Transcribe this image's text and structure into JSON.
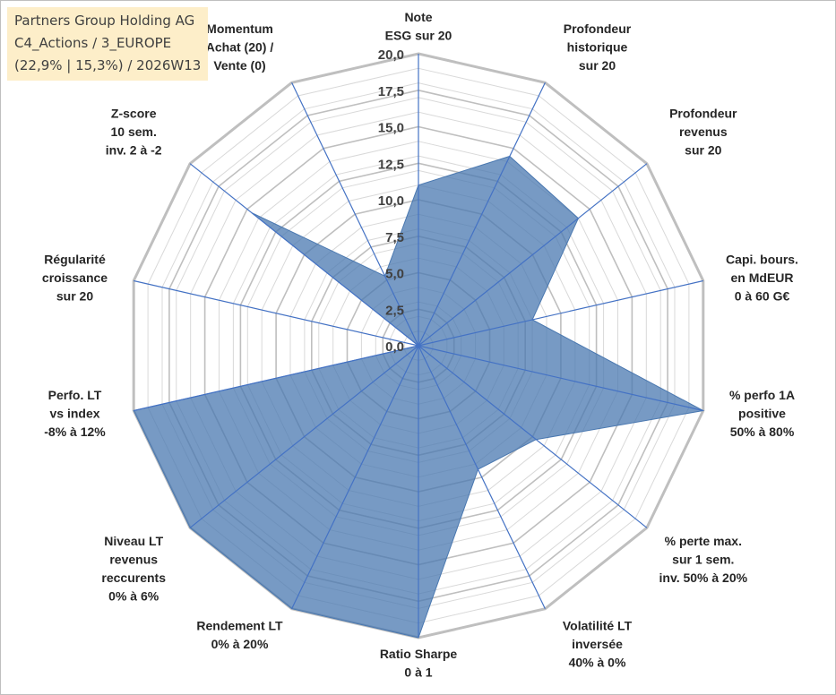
{
  "info": {
    "line1": "Partners Group Holding AG",
    "line2": "C4_Actions / 3_EUROPE",
    "line3": "(22,9% | 15,3%) / 2026W13"
  },
  "colors": {
    "fill": "#4a78b0",
    "spoke": "#4472c4",
    "grid_major": "#bfbfbf",
    "grid_minor": "#d9d9d9"
  },
  "chart_data": {
    "type": "radar",
    "rmax": 20,
    "tick_values": [
      0,
      2.5,
      5,
      7.5,
      10,
      12.5,
      15,
      17.5,
      20
    ],
    "tick_labels": [
      "0,0",
      "2,5",
      "5,0",
      "7,5",
      "10,0",
      "12,5",
      "15,0",
      "17,5",
      "20,0"
    ],
    "axes": [
      {
        "lines": [
          "Note",
          "ESG sur 20"
        ],
        "value": 11
      },
      {
        "lines": [
          "Profondeur",
          "historique",
          "sur 20"
        ],
        "value": 14.4
      },
      {
        "lines": [
          "Profondeur",
          "revenus",
          "sur 20"
        ],
        "value": 14.0
      },
      {
        "lines": [
          "Capi. bours.",
          "en MdEUR",
          "0 à 60 G€"
        ],
        "value": 8.0
      },
      {
        "lines": [
          "% perfo 1A",
          "positive",
          "50% à 80%"
        ],
        "value": 20
      },
      {
        "lines": [
          "% perte max.",
          "sur 1 sem.",
          "inv. 50% à 20%"
        ],
        "value": 10.3
      },
      {
        "lines": [
          "Volatilité LT",
          "inversée",
          "40% à 0%"
        ],
        "value": 9.4
      },
      {
        "lines": [
          "Ratio Sharpe",
          "0 à 1"
        ],
        "value": 20
      },
      {
        "lines": [
          "Rendement LT",
          "0% à 20%"
        ],
        "value": 20
      },
      {
        "lines": [
          "Niveau LT",
          "revenus",
          "reccurents",
          "0% à 6%"
        ],
        "value": 20
      },
      {
        "lines": [
          "Perfo. LT",
          "vs index",
          "-8% à 12%"
        ],
        "value": 20
      },
      {
        "lines": [
          "Régularité",
          "croissance",
          "sur 20"
        ],
        "value": 0
      },
      {
        "lines": [
          "Z-score",
          "10 sem.",
          "inv. 2 à -2"
        ],
        "value": 14.6
      },
      {
        "lines": [
          "Momentum",
          "Achat (20) /",
          "Vente (0)"
        ],
        "value": 5.3
      }
    ]
  }
}
